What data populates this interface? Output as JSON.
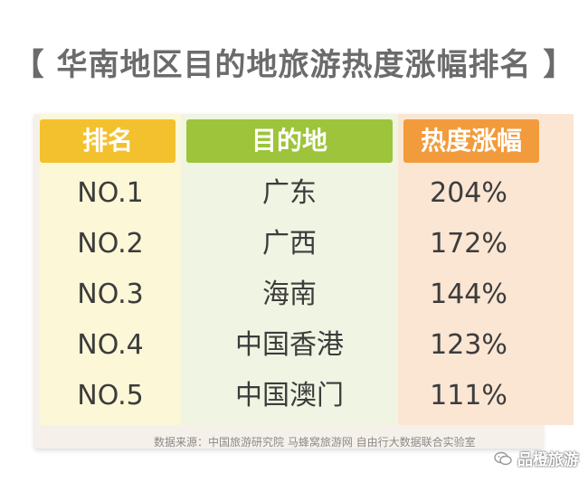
{
  "title": "【 华南地区目的地旅游热度涨幅排名 】",
  "chart_data": {
    "type": "table",
    "columns": [
      "排名",
      "目的地",
      "热度涨幅"
    ],
    "rows": [
      [
        "NO.1",
        "广东",
        "204%"
      ],
      [
        "NO.2",
        "广西",
        "172%"
      ],
      [
        "NO.3",
        "海南",
        "144%"
      ],
      [
        "NO.4",
        "中国香港",
        "123%"
      ],
      [
        "NO.5",
        "中国澳门",
        "111%"
      ]
    ],
    "values": [
      204,
      172,
      144,
      123,
      111
    ],
    "header_colors": [
      "#f3c12d",
      "#9dc43a",
      "#f29b3c"
    ]
  },
  "source": "数据来源：中国旅游研究院  马蜂窝旅游网  自由行大数据联合实验室",
  "watermark": {
    "text": "品橙旅游",
    "icon": "wechat-icon"
  }
}
